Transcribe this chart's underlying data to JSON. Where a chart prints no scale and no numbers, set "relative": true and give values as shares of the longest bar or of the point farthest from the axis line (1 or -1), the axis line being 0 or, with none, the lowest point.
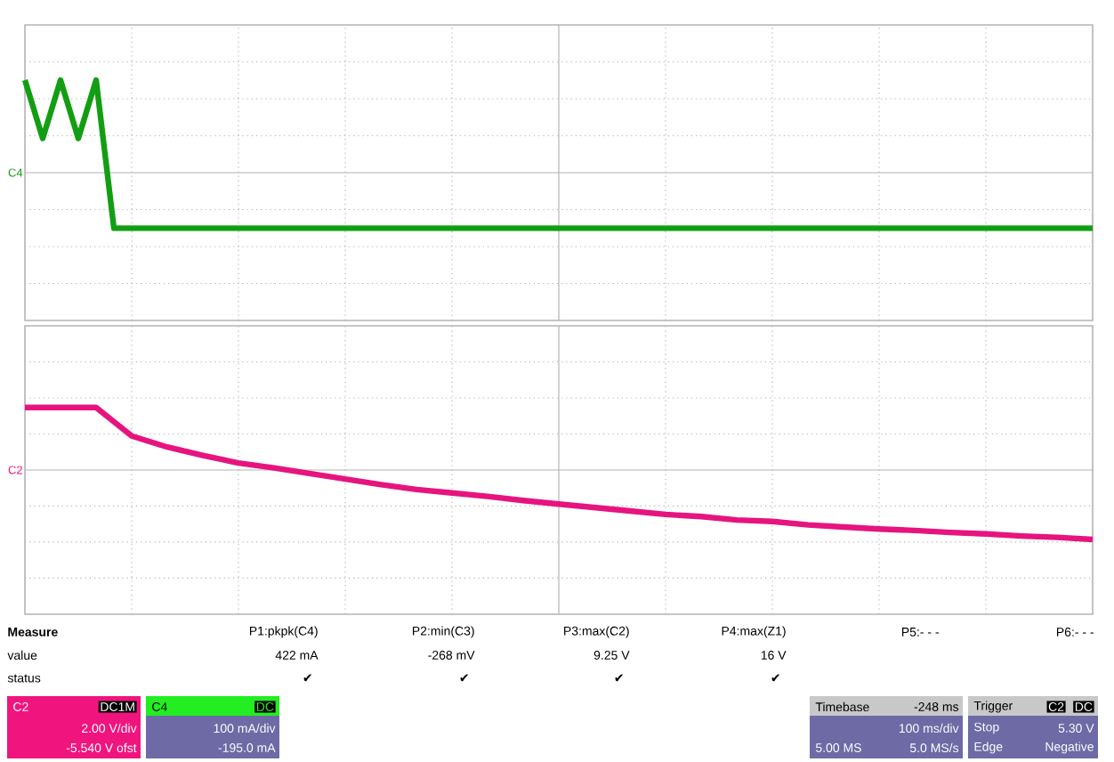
{
  "chart_data": [
    {
      "type": "line",
      "relative": true,
      "grid": true,
      "marker": "none",
      "line_style": "solid",
      "categories": [
        null,
        null,
        null,
        null,
        null,
        null,
        null,
        null,
        null,
        null,
        null,
        null,
        null,
        null,
        null,
        null,
        null,
        null,
        null,
        null,
        null,
        null,
        null,
        null,
        null,
        null,
        null,
        null,
        null,
        null,
        null,
        null,
        null,
        null,
        null,
        null,
        null,
        null,
        null,
        null,
        null,
        null,
        null,
        null,
        null,
        null,
        null,
        null,
        null,
        null,
        null,
        null,
        null,
        null,
        null,
        null,
        null,
        null,
        null,
        null,
        null
      ],
      "series": [
        {
          "name": "C4",
          "color": "#129e12",
          "values": [
            1,
            0.37,
            1,
            0.37,
            1,
            -0.6,
            -0.6,
            -0.6,
            -0.6,
            -0.6,
            -0.6,
            -0.6,
            -0.6,
            -0.6,
            -0.6,
            -0.6,
            -0.6,
            -0.6,
            -0.6,
            -0.6,
            -0.6,
            -0.6,
            -0.6,
            -0.6,
            -0.6,
            -0.6,
            -0.6,
            -0.6,
            -0.6,
            -0.6,
            -0.6,
            -0.6,
            -0.6,
            -0.6,
            -0.6,
            -0.6,
            -0.6,
            -0.6,
            -0.6,
            -0.6,
            -0.6,
            -0.6,
            -0.6,
            -0.6,
            -0.6,
            -0.6,
            -0.6,
            -0.6,
            -0.6,
            -0.6,
            -0.6,
            -0.6,
            -0.6,
            -0.6,
            -0.6,
            -0.6,
            -0.6,
            -0.6,
            -0.6,
            -0.6,
            -0.6
          ]
        }
      ]
    },
    {
      "type": "line",
      "relative": true,
      "grid": true,
      "marker": "none",
      "line_style": "solid",
      "categories": [
        null,
        null,
        null,
        null,
        null,
        null,
        null,
        null,
        null,
        null,
        null,
        null,
        null,
        null,
        null,
        null,
        null,
        null,
        null,
        null,
        null,
        null,
        null,
        null,
        null,
        null,
        null,
        null,
        null,
        null,
        null
      ],
      "series": [
        {
          "name": "C2",
          "color": "#e6147f",
          "values": [
            0.9,
            0.9,
            0.9,
            0.49,
            0.33,
            0.21,
            0.1,
            0.03,
            -0.05,
            -0.13,
            -0.21,
            -0.28,
            -0.33,
            -0.38,
            -0.44,
            -0.49,
            -0.54,
            -0.59,
            -0.64,
            -0.67,
            -0.72,
            -0.74,
            -0.79,
            -0.82,
            -0.85,
            -0.87,
            -0.9,
            -0.92,
            -0.95,
            -0.97,
            -1
          ]
        }
      ]
    },
    {
      "type": "other",
      "annotations": [
        "Measure",
        "value",
        "status",
        "P1:pkpk(C4)",
        "422 mA",
        "✔",
        "P2:min(C3)",
        "-268 mV",
        "✔",
        "P3:max(C2)",
        "9.25 V",
        "✔",
        "P4:max(Z1)",
        "16 V",
        "✔",
        "P5:- - -",
        "P6:- - -",
        "C2",
        "DC1M",
        "2.00 V/div",
        "-5.540 V ofst",
        "C4",
        "DC",
        "100 mA/div",
        "-195.0 mA",
        "Timebase",
        "-248 ms",
        "100 ms/div",
        "5.00 MS",
        "5.0 MS/s",
        "Trigger",
        "C2",
        "DC",
        "Stop",
        "5.30 V",
        "Edge",
        "Negative"
      ]
    }
  ]
}
